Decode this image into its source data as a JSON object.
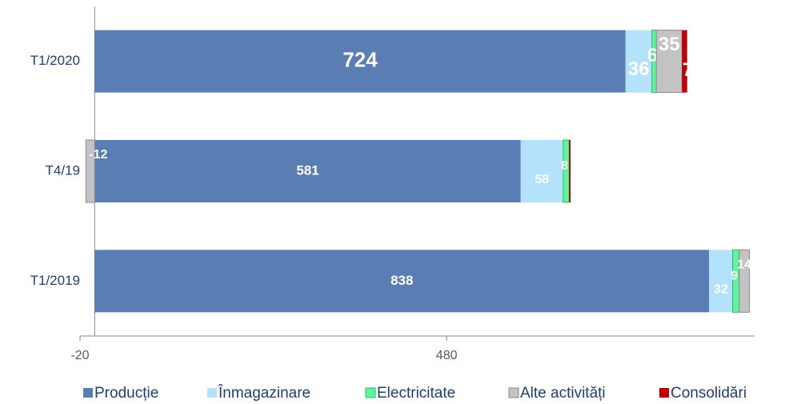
{
  "chart_data": {
    "type": "stacked_barh",
    "categories": [
      "T1/2020",
      "T4/19",
      "T1/2019"
    ],
    "series": [
      {
        "name": "Producție",
        "color": "#5a7db4",
        "values": [
          724,
          581,
          838
        ]
      },
      {
        "name": "Înmagazinare",
        "color": "#b4e1fb",
        "values": [
          36,
          58,
          32
        ]
      },
      {
        "name": "Electricitate",
        "color": "#5ff59c",
        "values": [
          6,
          8,
          9
        ]
      },
      {
        "name": "Alte activități",
        "color": "#c3c3c3",
        "values": [
          35,
          -12,
          14
        ]
      },
      {
        "name": "Consolidări",
        "color": "#c00000",
        "values": [
          7,
          2,
          0
        ],
        "value_labels": [
          "7",
          null,
          null
        ]
      }
    ],
    "xlim": [
      -20,
      900
    ],
    "xticks": [
      -20,
      480
    ]
  }
}
